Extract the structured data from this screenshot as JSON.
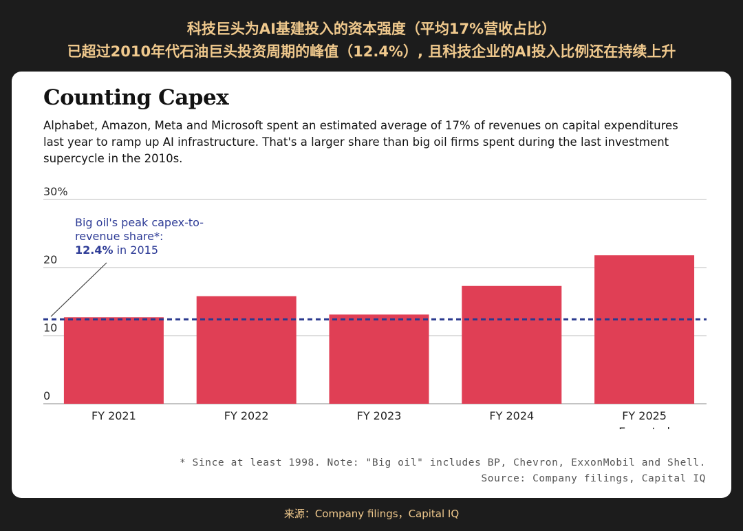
{
  "headline": {
    "line1": "科技巨头为AI基建投入的资本强度（平均17%营收占比）",
    "line2": "已超过2010年代石油巨头投资周期的峰值（12.4%）, 且科技企业的AI投入比例还在持续上升"
  },
  "source_cn": "来源：Company filings，Capital IQ",
  "colors": {
    "bar": "#e03f55",
    "reference_line": "#2a3a8f",
    "annotation": "#2d3b96",
    "headline": "#f0c98d"
  },
  "chart_data": {
    "type": "bar",
    "title": "Counting Capex",
    "subtitle": [
      "Alphabet, Amazon, Meta and Microsoft spent an estimated average of 17% of revenues on capital expenditures",
      "last year to ramp up AI infrastructure. That's a larger share than big oil firms spent during the last investment",
      "supercycle in the 2010s."
    ],
    "categories": [
      [
        "FY 2021"
      ],
      [
        "FY 2022"
      ],
      [
        "FY 2023"
      ],
      [
        "FY 2024"
      ],
      [
        "FY 2025",
        "Expected"
      ]
    ],
    "values": [
      12.7,
      15.8,
      13.1,
      17.3,
      21.8
    ],
    "ylim": [
      0,
      30
    ],
    "yticks": [
      {
        "value": 30,
        "label": "30%"
      },
      {
        "value": 20,
        "label": "20"
      },
      {
        "value": 10,
        "label": "10"
      },
      {
        "value": 0,
        "label": "0"
      }
    ],
    "grid": true,
    "reference_line": {
      "value": 12.4,
      "style": "dashed",
      "label_lines": [
        "Big oil's peak capex-to-",
        "revenue share*:"
      ],
      "label_value": "12.4%",
      "label_suffix": " in 2015"
    },
    "footnote": [
      "* Since at least 1998. Note: \"Big oil\" includes BP, Chevron, ExxonMobil and Shell.",
      "Source: Company filings, Capital IQ"
    ]
  }
}
